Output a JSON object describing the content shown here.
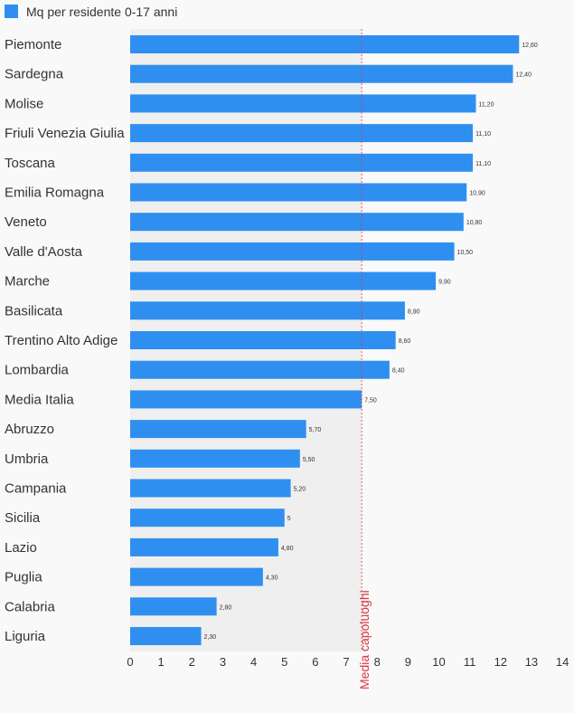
{
  "chart_data": {
    "type": "bar",
    "orientation": "horizontal",
    "legend": {
      "position": "top-left"
    },
    "series": [
      {
        "name": "Mq per residente 0-17 anni",
        "color": "#2f8ff0",
        "values": [
          12.6,
          12.4,
          11.2,
          11.1,
          11.1,
          10.9,
          10.8,
          10.5,
          9.9,
          8.9,
          8.6,
          8.4,
          7.5,
          5.7,
          5.5,
          5.2,
          5,
          4.8,
          4.3,
          2.8,
          2.3
        ],
        "value_labels": [
          "12,60",
          "12,40",
          "11,20",
          "11,10",
          "11,10",
          "10,90",
          "10,80",
          "10,50",
          "9,90",
          "8,90",
          "8,60",
          "8,40",
          "7,50",
          "5,70",
          "5,50",
          "5,20",
          "5",
          "4,80",
          "4,30",
          "2,80",
          "2,30"
        ]
      }
    ],
    "categories": [
      "Piemonte",
      "Sardegna",
      "Molise",
      "Friuli Venezia Giulia",
      "Toscana",
      "Emilia Romagna",
      "Veneto",
      "Valle d'Aosta",
      "Marche",
      "Basilicata",
      "Trentino Alto Adige",
      "Lombardia",
      "Media Italia",
      "Abruzzo",
      "Umbria",
      "Campania",
      "Sicilia",
      "Lazio",
      "Puglia",
      "Calabria",
      "Liguria"
    ],
    "xlim": [
      0,
      14
    ],
    "x_ticks": [
      0,
      1,
      2,
      3,
      4,
      5,
      6,
      7,
      8,
      9,
      10,
      11,
      12,
      13,
      14
    ],
    "reference_line": {
      "value": 7.5,
      "label": "Media capoluoghi",
      "color": "#d9363e",
      "shaded_band": [
        0,
        7.5
      ],
      "band_color": "#efefef"
    },
    "grid": false
  }
}
